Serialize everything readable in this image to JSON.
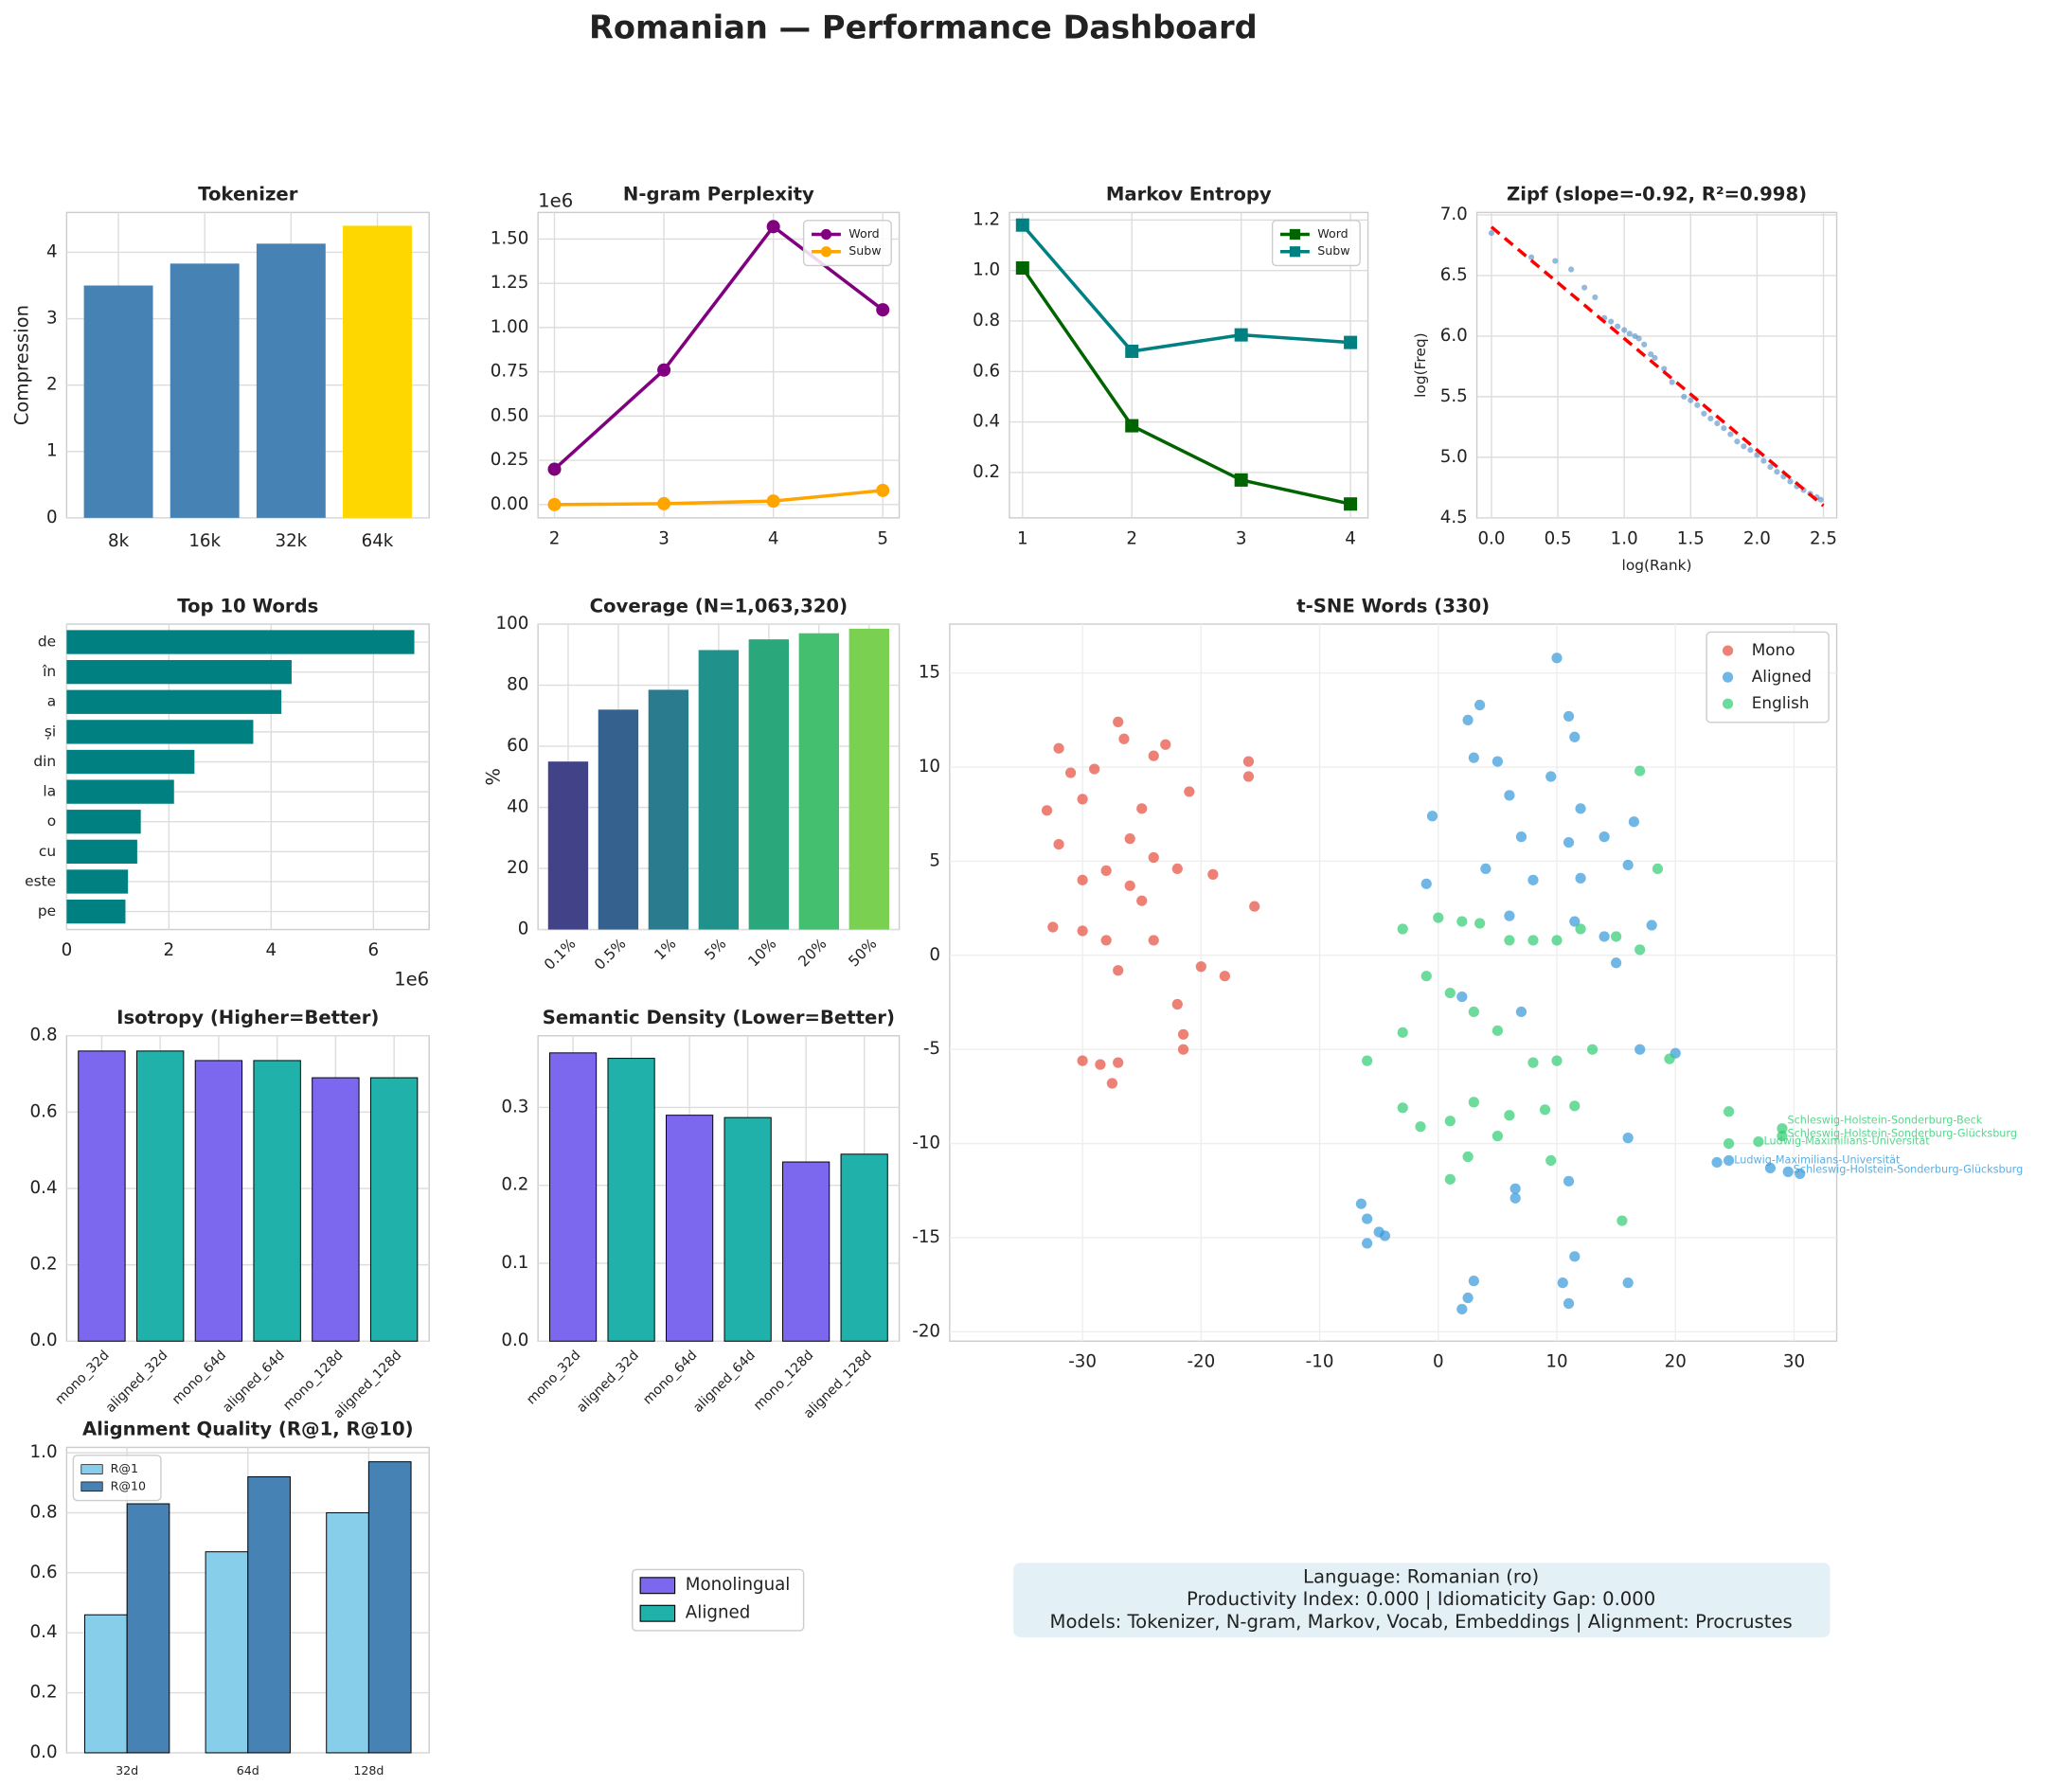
{
  "title": "Romanian — Performance Dashboard",
  "chart_data": [
    {
      "type": "bar",
      "title": "Tokenizer",
      "ylabel": "Compression",
      "categories": [
        "8k",
        "16k",
        "32k",
        "64k"
      ],
      "values": [
        3.5,
        3.83,
        4.13,
        4.4
      ],
      "colors": [
        "#4682b4",
        "#4682b4",
        "#4682b4",
        "#ffd700"
      ],
      "ylim": [
        0,
        4.6
      ],
      "yticks": [
        0,
        1,
        2,
        3,
        4
      ],
      "grid": true
    },
    {
      "type": "line",
      "title": "N-gram Perplexity",
      "y_offset_label": "1e6",
      "x": [
        2,
        3,
        4,
        5
      ],
      "series": [
        {
          "name": "Word",
          "color": "#800080",
          "marker": "o",
          "values": [
            200000,
            760000,
            1570000,
            1100000
          ]
        },
        {
          "name": "Subw",
          "color": "#ffa500",
          "marker": "o",
          "values": [
            0,
            5000,
            20000,
            80000
          ]
        }
      ],
      "xlim": [
        1.85,
        5.15
      ],
      "xticks": [
        2,
        3,
        4,
        5
      ],
      "ylim": [
        -75000,
        1650000
      ],
      "yticks": [
        {
          "value": 0,
          "label": "0.00"
        },
        {
          "value": 250000,
          "label": "0.25"
        },
        {
          "value": 500000,
          "label": "0.50"
        },
        {
          "value": 750000,
          "label": "0.75"
        },
        {
          "value": 1000000,
          "label": "1.00"
        },
        {
          "value": 1250000,
          "label": "1.25"
        },
        {
          "value": 1500000,
          "label": "1.50"
        }
      ],
      "grid": true,
      "legend": "upper right"
    },
    {
      "type": "line",
      "title": "Markov Entropy",
      "x": [
        1,
        2,
        3,
        4
      ],
      "series": [
        {
          "name": "Word",
          "color": "#006400",
          "marker": "s",
          "values": [
            1.01,
            0.385,
            0.17,
            0.075
          ]
        },
        {
          "name": "Subw",
          "color": "#008080",
          "marker": "s",
          "values": [
            1.18,
            0.68,
            0.745,
            0.715
          ]
        }
      ],
      "xlim": [
        0.88,
        4.16
      ],
      "xticks": [
        1,
        2,
        3,
        4
      ],
      "ylim": [
        0.02,
        1.23
      ],
      "yticks": [
        0.2,
        0.4,
        0.6,
        0.8,
        {
          "value": 1,
          "label": "1.0"
        },
        1.2
      ],
      "grid": true,
      "legend": "upper right"
    },
    {
      "type": "scatter",
      "title": "Zipf (slope=-0.92, R²=0.998)",
      "xlabel": "log(Rank)",
      "ylabel": "log(Freq)",
      "series": [
        {
          "color": "#3a7fc1",
          "x": [
            0,
            0.3,
            0.48,
            0.6,
            0.7,
            0.78,
            0.85,
            0.9,
            0.95,
            1.0,
            1.04,
            1.08,
            1.11,
            1.15,
            1.2,
            1.23,
            1.3,
            1.36,
            1.45,
            1.5,
            1.55,
            1.6,
            1.65,
            1.7,
            1.75,
            1.8,
            1.85,
            1.9,
            1.95,
            2.0,
            2.05,
            2.1,
            2.15,
            2.2,
            2.25,
            2.3,
            2.35,
            2.4,
            2.45,
            2.48
          ],
          "y": [
            6.85,
            6.65,
            6.62,
            6.55,
            6.4,
            6.32,
            6.15,
            6.12,
            6.08,
            6.05,
            6.02,
            6.0,
            5.98,
            5.93,
            5.85,
            5.82,
            5.73,
            5.62,
            5.5,
            5.47,
            5.43,
            5.36,
            5.32,
            5.28,
            5.24,
            5.19,
            5.13,
            5.09,
            5.06,
            5.02,
            4.97,
            4.92,
            4.88,
            4.84,
            4.8,
            4.76,
            4.73,
            4.7,
            4.67,
            4.65
          ]
        }
      ],
      "fit_line": {
        "color": "#ff0000",
        "x": [
          0,
          2.5
        ],
        "y": [
          6.9,
          4.6
        ]
      },
      "xlim": [
        -0.11,
        2.6
      ],
      "xticks": [
        {
          "value": 0,
          "label": "0.0"
        },
        0.5,
        {
          "value": 1,
          "label": "1.0"
        },
        1.5,
        {
          "value": 2,
          "label": "2.0"
        },
        2.5
      ],
      "ylim": [
        4.5,
        7.02
      ],
      "yticks": [
        4.5,
        {
          "value": 5,
          "label": "5.0"
        },
        5.5,
        {
          "value": 6,
          "label": "6.0"
        },
        6.5,
        {
          "value": 7,
          "label": "7.0"
        }
      ],
      "grid": true
    },
    {
      "type": "barh",
      "title": "Top 10 Words",
      "x_offset_label": "1e6",
      "categories": [
        "de",
        "în",
        "a",
        "și",
        "din",
        "la",
        "o",
        "cu",
        "este",
        "pe"
      ],
      "values": [
        6800000,
        4400000,
        4200000,
        3650000,
        2500000,
        2100000,
        1450000,
        1380000,
        1200000,
        1150000
      ],
      "color": "#008080",
      "xlim": [
        0,
        7090000
      ],
      "xticks": [
        {
          "value": 0,
          "label": "0"
        },
        {
          "value": 2000000,
          "label": "2"
        },
        {
          "value": 4000000,
          "label": "4"
        },
        {
          "value": 6000000,
          "label": "6"
        }
      ],
      "grid": true
    },
    {
      "type": "bar",
      "title": "Coverage (N=1,063,320)",
      "ylabel": "%",
      "categories": [
        "0.1%",
        "0.5%",
        "1%",
        "5%",
        "10%",
        "20%",
        "50%"
      ],
      "values": [
        55,
        72,
        78.5,
        91.5,
        95,
        97,
        98.5
      ],
      "colors": [
        "#414287",
        "#34618d",
        "#2b7b8e",
        "#21918c",
        "#2aa87c",
        "#44bf70",
        "#7ad151"
      ],
      "ylim": [
        0,
        100
      ],
      "yticks": [
        0,
        20,
        40,
        60,
        80,
        100
      ],
      "grid": true,
      "xtick_rotation": 45
    },
    {
      "type": "scatter",
      "title": "t-SNE Words (330)",
      "series": [
        {
          "name": "Mono",
          "color": "#e74c3c",
          "x": [
            -33,
            -32,
            -31,
            -32,
            -30,
            -29,
            -27,
            -26.5,
            -24,
            -23,
            -21,
            -25,
            -26,
            -28,
            -24,
            -22,
            -19,
            -16,
            -16,
            -15.5,
            -32.5,
            -30,
            -28,
            -25,
            -27,
            -24,
            -20,
            -18,
            -22,
            -21.5,
            -21.5,
            -30,
            -28.5,
            -27.5,
            -27,
            -26,
            -30
          ],
          "y": [
            7.7,
            11,
            9.7,
            5.9,
            8.3,
            9.9,
            12.4,
            11.5,
            10.6,
            11.2,
            8.7,
            7.8,
            6.2,
            4.5,
            5.2,
            4.6,
            4.3,
            10.3,
            9.5,
            2.6,
            1.5,
            1.3,
            0.8,
            2.9,
            -0.8,
            0.8,
            -0.6,
            -1.1,
            -2.6,
            -4.2,
            -5,
            -5.6,
            -5.8,
            -6.8,
            -5.7,
            3.7,
            4
          ]
        },
        {
          "name": "Aligned",
          "color": "#3498db",
          "x": [
            10,
            3.5,
            2.5,
            11,
            11.5,
            5,
            3,
            9.5,
            6,
            -0.5,
            12,
            16.5,
            7,
            11,
            14,
            4,
            8,
            12,
            16,
            18,
            -1,
            6,
            11.5,
            14,
            15,
            2,
            7,
            17,
            20,
            16,
            6.5,
            6.5,
            11,
            11.5,
            -6.5,
            -6,
            -5,
            -4.5,
            -6,
            2,
            2.5,
            3,
            10.5,
            11,
            16,
            24.5,
            28,
            29.5,
            30.5,
            23.5
          ],
          "y": [
            15.8,
            13.3,
            12.5,
            12.7,
            11.6,
            10.3,
            10.5,
            9.5,
            8.5,
            7.4,
            7.8,
            7.1,
            6.3,
            6,
            6.3,
            4.6,
            4,
            4.1,
            4.8,
            1.6,
            3.8,
            2.1,
            1.8,
            1,
            -0.4,
            -2.2,
            -3,
            -5,
            -5.2,
            -9.7,
            -12.4,
            -12.9,
            -12,
            -16,
            -13.2,
            -14,
            -14.7,
            -14.9,
            -15.3,
            -18.8,
            -18.2,
            -17.3,
            -17.4,
            -18.5,
            -17.4,
            -10.9,
            -11.3,
            -11.5,
            -11.6,
            -11
          ]
        },
        {
          "name": "English",
          "color": "#2ecc71",
          "x": [
            17,
            18.5,
            -3,
            0,
            2,
            3.5,
            6,
            8,
            10,
            12,
            15,
            17,
            -1,
            1,
            3,
            5,
            8,
            10,
            13,
            19.5,
            -3,
            -3,
            -1.5,
            1,
            3,
            6,
            5,
            9,
            11.5,
            1,
            2.5,
            9.5,
            15.5,
            -6,
            24.5,
            24.5,
            27,
            29,
            29
          ],
          "y": [
            9.8,
            4.6,
            1.4,
            2,
            1.8,
            1.7,
            0.8,
            0.8,
            0.8,
            1.4,
            1,
            0.3,
            -1.1,
            -2,
            -3,
            -4,
            -5.7,
            -5.6,
            -5,
            -5.5,
            -4.1,
            -8.1,
            -9.1,
            -8.8,
            -7.8,
            -8.5,
            -9.6,
            -8.2,
            -8,
            -11.9,
            -10.7,
            -10.9,
            -14.1,
            -5.6,
            -8.3,
            -10,
            -9.9,
            -9.2,
            -9.6
          ]
        }
      ],
      "annotations": [
        {
          "text": "Schleswig-Holstein-Sonderburg-Beck",
          "x": 29,
          "y": -8.8,
          "color": "#2ecc71"
        },
        {
          "text": "Schleswig-Holstein-Sonderburg-Glücksburg",
          "x": 29,
          "y": -9.5,
          "color": "#2ecc71"
        },
        {
          "text": "Ludwig-Maximilians-Universität",
          "x": 27,
          "y": -9.9,
          "color": "#2ecc71"
        },
        {
          "text": "Ludwig-Maximilians-Universität",
          "x": 24.5,
          "y": -10.9,
          "color": "#3498db"
        },
        {
          "text": "Schleswig-Holstein-Sonderburg-Glücksburg",
          "x": 29.5,
          "y": -11.4,
          "color": "#3498db"
        }
      ],
      "xlim": [
        -41.2,
        33.6
      ],
      "xticks": [
        -30,
        -20,
        -10,
        0,
        10,
        20,
        30
      ],
      "ylim": [
        -20.5,
        17.6
      ],
      "yticks": [
        -20,
        -15,
        -10,
        -5,
        0,
        5,
        10,
        15
      ],
      "grid": true,
      "legend": "upper right"
    },
    {
      "type": "bar",
      "title": "Isotropy (Higher=Better)",
      "categories": [
        "mono_32d",
        "aligned_32d",
        "mono_64d",
        "aligned_64d",
        "mono_128d",
        "aligned_128d"
      ],
      "values": [
        0.76,
        0.76,
        0.735,
        0.735,
        0.69,
        0.69
      ],
      "colors": [
        "#7b68ee",
        "#20b2aa",
        "#7b68ee",
        "#20b2aa",
        "#7b68ee",
        "#20b2aa"
      ],
      "edgecolor": "#000000",
      "ylim": [
        0,
        0.8
      ],
      "yticks": [
        {
          "value": 0,
          "label": "0.0"
        },
        0.2,
        0.4,
        0.6,
        0.8
      ],
      "grid": true,
      "xtick_rotation": 45
    },
    {
      "type": "bar",
      "title": "Semantic Density (Lower=Better)",
      "categories": [
        "mono_32d",
        "aligned_32d",
        "mono_64d",
        "aligned_64d",
        "mono_128d",
        "aligned_128d"
      ],
      "values": [
        0.37,
        0.363,
        0.29,
        0.287,
        0.23,
        0.24
      ],
      "colors": [
        "#7b68ee",
        "#20b2aa",
        "#7b68ee",
        "#20b2aa",
        "#7b68ee",
        "#20b2aa"
      ],
      "edgecolor": "#000000",
      "ylim": [
        0,
        0.392
      ],
      "yticks": [
        {
          "value": 0,
          "label": "0.0"
        },
        0.1,
        0.2,
        0.3
      ],
      "grid": true,
      "xtick_rotation": 45
    },
    {
      "type": "bar",
      "title": "Alignment Quality (R@1, R@10)",
      "categories": [
        "32d",
        "64d",
        "128d"
      ],
      "series": [
        {
          "name": "R@1",
          "color": "#87ceeb",
          "values": [
            0.46,
            0.67,
            0.8
          ]
        },
        {
          "name": "R@10",
          "color": "#4682b4",
          "values": [
            0.83,
            0.92,
            0.97
          ]
        }
      ],
      "edgecolor": "#000000",
      "ylim": [
        0,
        1.018
      ],
      "yticks": [
        {
          "value": 0,
          "label": "0.0"
        },
        0.2,
        0.4,
        0.6,
        0.8,
        {
          "value": 1,
          "label": "1.0"
        }
      ],
      "grid": true,
      "legend": "upper left"
    }
  ],
  "legend": {
    "items": [
      {
        "name": "Monolingual",
        "color": "#7b68ee"
      },
      {
        "name": "Aligned",
        "color": "#20b2aa"
      }
    ]
  },
  "info_box": {
    "lines": [
      "Language: Romanian (ro)",
      "Productivity Index: 0.000  |  Idiomaticity Gap: 0.000",
      "Models: Tokenizer, N-gram, Markov, Vocab, Embeddings  |  Alignment: Procrustes"
    ]
  }
}
